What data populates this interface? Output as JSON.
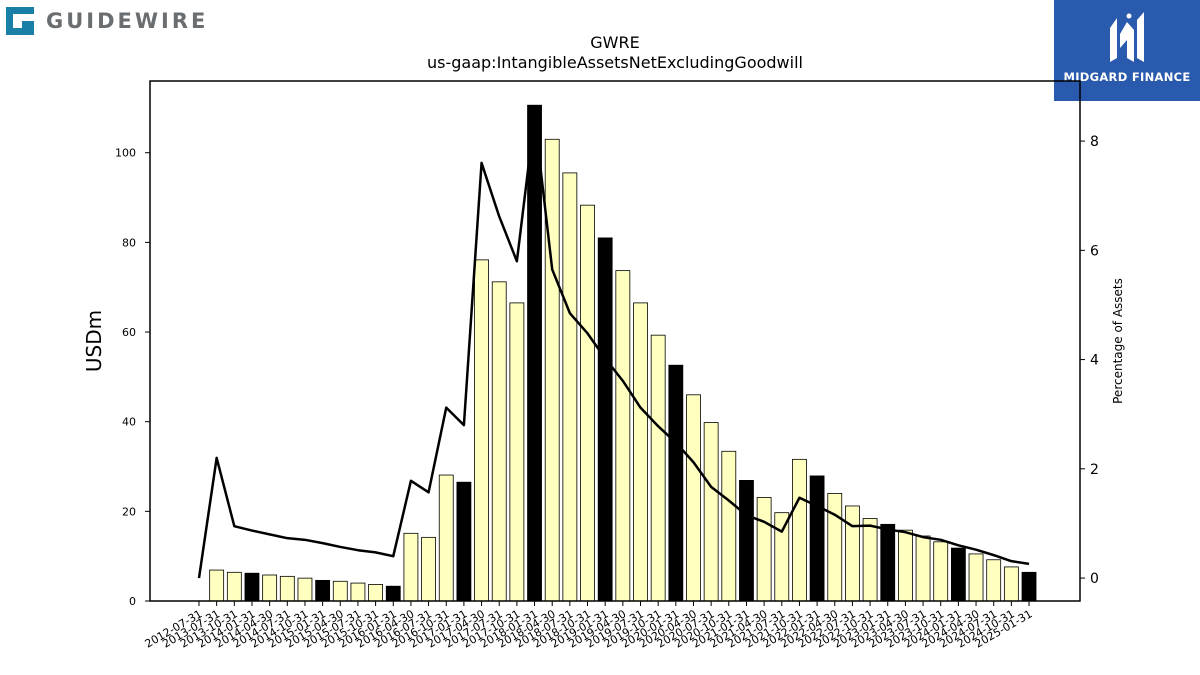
{
  "logos": {
    "left_text": "GUIDEWIRE",
    "right_text": "MIDGARD FINANCE"
  },
  "colors": {
    "bar_fill": "#ffffc0",
    "bar_highlight": "#000000",
    "line": "#000000",
    "brand_teal": "#1a7fa6",
    "brand_blue": "#2a5aad"
  },
  "chart_data": {
    "type": "bar",
    "title": "GWRE",
    "subtitle": "us-gaap:IntangibleAssetsNetExcludingGoodwill",
    "ylabel": "USDm",
    "y2label": "Percentage of Assets",
    "ylim": [
      0,
      116
    ],
    "y2lim": [
      -0.42,
      9.1
    ],
    "yticks": [
      0,
      20,
      40,
      60,
      80,
      100
    ],
    "y2ticks": [
      0,
      2,
      4,
      6,
      8
    ],
    "grid": false,
    "categories": [
      "2012-07-31",
      "2013-07-31",
      "2013-10-31",
      "2014-01-31",
      "2014-04-30",
      "2014-07-31",
      "2014-10-31",
      "2015-01-31",
      "2015-04-30",
      "2015-07-31",
      "2015-10-31",
      "2016-01-31",
      "2016-04-30",
      "2016-07-31",
      "2016-10-31",
      "2017-01-31",
      "2017-04-30",
      "2017-07-31",
      "2017-10-31",
      "2018-01-31",
      "2018-04-30",
      "2018-07-31",
      "2018-10-31",
      "2019-01-31",
      "2019-04-30",
      "2019-07-31",
      "2019-10-31",
      "2020-01-31",
      "2020-04-30",
      "2020-07-31",
      "2020-10-31",
      "2021-01-31",
      "2021-04-30",
      "2021-07-31",
      "2021-10-31",
      "2022-01-31",
      "2022-04-30",
      "2022-07-31",
      "2022-10-31",
      "2023-01-31",
      "2023-04-30",
      "2023-07-31",
      "2023-10-31",
      "2024-01-31",
      "2024-04-30",
      "2024-07-31",
      "2024-10-31",
      "2025-01-31"
    ],
    "series": [
      {
        "type": "bar",
        "values": [
          0,
          6.9,
          6.4,
          6.2,
          5.8,
          5.5,
          5.1,
          4.6,
          4.4,
          4.0,
          3.7,
          3.3,
          15.1,
          14.2,
          28.1,
          26.5,
          76.1,
          71.2,
          66.5,
          110.6,
          103.0,
          95.5,
          88.3,
          81.0,
          73.7,
          66.5,
          59.3,
          52.6,
          46.0,
          39.8,
          33.4,
          26.9,
          23.1,
          19.7,
          31.6,
          27.9,
          24.0,
          21.2,
          18.4,
          17.1,
          15.8,
          14.5,
          13.2,
          11.8,
          10.5,
          9.2,
          7.6,
          6.4
        ],
        "highlighted": [
          "2014-01-31",
          "2015-01-31",
          "2016-01-31",
          "2017-01-31",
          "2018-01-31",
          "2019-01-31",
          "2020-01-31",
          "2021-01-31",
          "2022-01-31",
          "2023-01-31",
          "2024-01-31",
          "2025-01-31"
        ]
      },
      {
        "type": "line",
        "axis": "right",
        "values": [
          0.0,
          2.2,
          0.95,
          0.87,
          0.8,
          0.73,
          0.7,
          0.64,
          0.57,
          0.51,
          0.47,
          0.4,
          1.78,
          1.57,
          3.12,
          2.8,
          7.6,
          6.62,
          5.8,
          8.45,
          5.65,
          4.85,
          4.48,
          4.02,
          3.61,
          3.12,
          2.78,
          2.48,
          2.12,
          1.67,
          1.42,
          1.15,
          1.03,
          0.85,
          1.47,
          1.32,
          1.16,
          0.95,
          0.96,
          0.89,
          0.84,
          0.75,
          0.7,
          0.6,
          0.52,
          0.42,
          0.31,
          0.26
        ]
      }
    ]
  }
}
